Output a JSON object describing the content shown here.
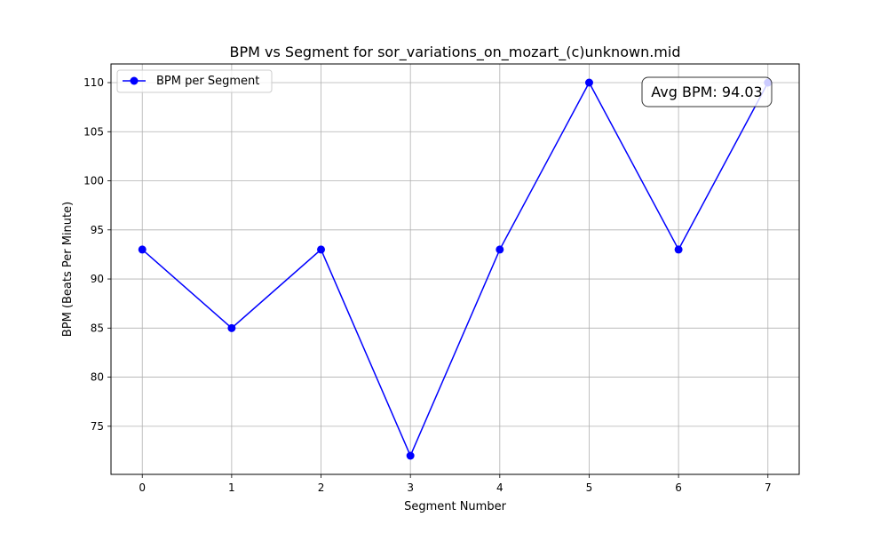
{
  "chart_data": {
    "type": "line",
    "title": "BPM vs Segment for sor_variations_on_mozart_(c)unknown.mid",
    "xlabel": "Segment Number",
    "ylabel": "BPM (Beats Per Minute)",
    "x": [
      0,
      1,
      2,
      3,
      4,
      5,
      6,
      7
    ],
    "series": [
      {
        "name": "BPM per Segment",
        "values": [
          93,
          85,
          93,
          72,
          93,
          110,
          93,
          110
        ],
        "color": "#0000ff"
      }
    ],
    "xticks": [
      0,
      1,
      2,
      3,
      4,
      5,
      6,
      7
    ],
    "yticks": [
      75,
      80,
      85,
      90,
      95,
      100,
      105,
      110
    ],
    "xlim": [
      -0.35,
      7.35
    ],
    "ylim": [
      70.1,
      111.9
    ],
    "grid": true,
    "legend_position": "top-left",
    "annotation": "Avg BPM: 94.03"
  }
}
